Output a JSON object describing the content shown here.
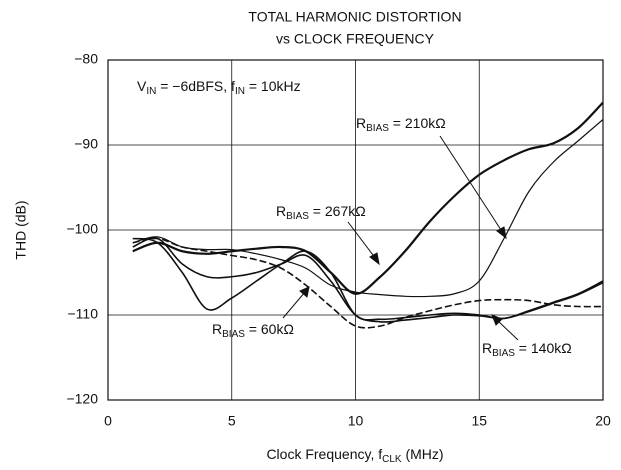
{
  "chart_data": {
    "type": "line",
    "title": [
      "TOTAL HARMONIC DISTORTION",
      "vs CLOCK FREQUENCY"
    ],
    "xlabel": [
      "Clock Frequency, f",
      "CLK",
      " (MHz)"
    ],
    "ylabel": "THD (dB)",
    "x": [
      1,
      2,
      3,
      4,
      5,
      6,
      7,
      8,
      9,
      10,
      11,
      12,
      13,
      14,
      15,
      16,
      17,
      18,
      19,
      20
    ],
    "xlim": [
      0,
      20
    ],
    "xticks": [
      0,
      5,
      10,
      15,
      20
    ],
    "ylim": [
      -120,
      -80
    ],
    "yticks": [
      {
        "value": -120,
        "label": "−120"
      },
      {
        "value": -110,
        "label": "−110"
      },
      {
        "value": -100,
        "label": "−100"
      },
      {
        "value": -90,
        "label": "−90"
      },
      {
        "value": -80,
        "label": "−80"
      }
    ],
    "grid": true,
    "series": [
      {
        "color": "#111",
        "width": 2.2,
        "dash": false,
        "values": [
          -102.5,
          -101.5,
          -102.5,
          -102.8,
          -102.5,
          -102.2,
          -102.0,
          -102.5,
          -105,
          -107.5,
          -105.5,
          -102.5,
          -99,
          -96,
          -93.5,
          -91.8,
          -90.5,
          -89.8,
          -88,
          -85
        ]
      },
      {
        "color": "#111",
        "width": 1.2,
        "dash": false,
        "values": [
          -101.5,
          -100.8,
          -102,
          -102.3,
          -102.3,
          -102.8,
          -103.5,
          -104.5,
          -106.5,
          -107.3,
          -107.6,
          -107.8,
          -107.8,
          -107.5,
          -106,
          -101,
          -95.5,
          -92,
          -89.5,
          -87
        ]
      },
      {
        "color": "#111",
        "width": 1.6,
        "dash": false,
        "values": [
          -101,
          -101.5,
          -105,
          -109.3,
          -108,
          -106,
          -104,
          -102.5,
          -105,
          -110,
          -110.5,
          -110.3,
          -110,
          -109.8,
          -110,
          -110.4,
          -109.5,
          -108.5,
          -107.5,
          -106
        ]
      },
      {
        "color": "#111",
        "width": 1.6,
        "dash": false,
        "values": [
          -102,
          -101,
          -104,
          -105.5,
          -105.5,
          -105,
          -104,
          -103,
          -106,
          -110,
          -110.8,
          -110.6,
          -110.3,
          -110,
          -110.1,
          -110.4,
          -109.6,
          -108.6,
          -107.6,
          -106.2
        ]
      },
      {
        "color": "#111",
        "width": 1.6,
        "dash": true,
        "values": [
          -101.5,
          -101,
          -102,
          -102.5,
          -103,
          -103.5,
          -104.5,
          -106.5,
          -109,
          -111.3,
          -111.3,
          -110.3,
          -109.5,
          -108.8,
          -108.3,
          -108.2,
          -108.3,
          -108.8,
          -109,
          -109
        ]
      }
    ],
    "annotations": [
      [
        "V",
        "IN",
        " = −6dBFS, f",
        "IN",
        " = 10kHz"
      ],
      [
        "R",
        "BIAS",
        " = 210kΩ"
      ],
      [
        "R",
        "BIAS",
        " = 267kΩ"
      ],
      [
        "R",
        "BIAS",
        " = 60kΩ"
      ],
      [
        "R",
        "BIAS",
        " = 140kΩ"
      ]
    ]
  }
}
